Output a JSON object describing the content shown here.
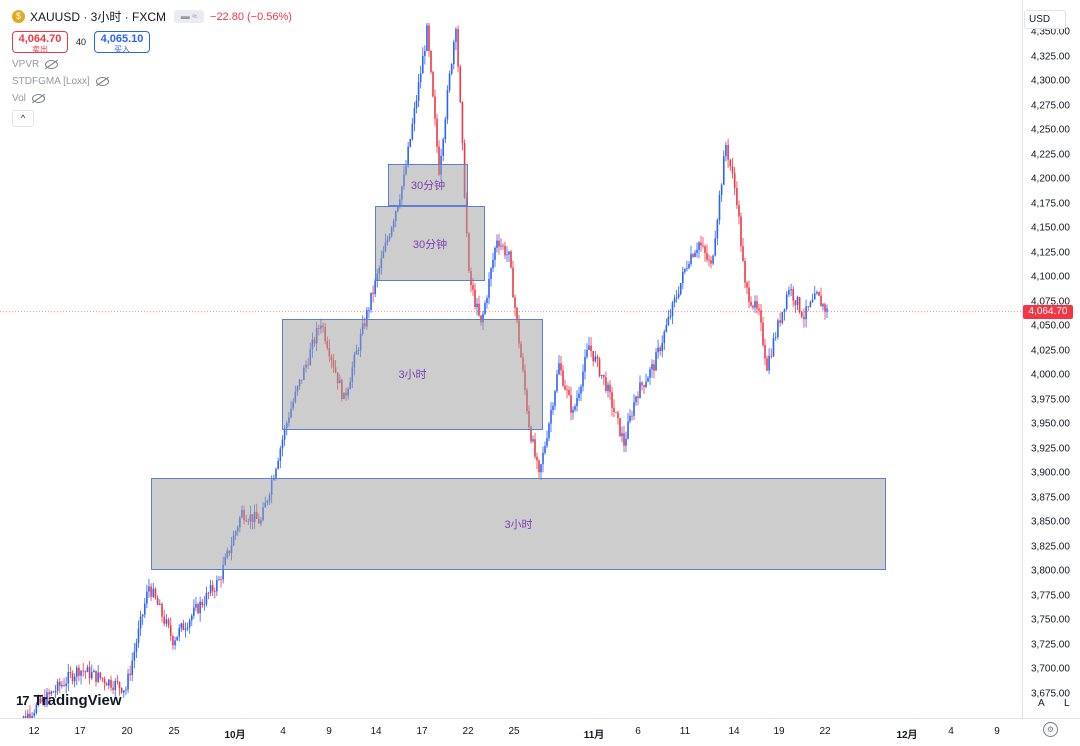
{
  "legend": {
    "symbol": "XAUUSD · 3小时 · FXCM",
    "coin_icon": "gold-coin-icon",
    "toggle_glyph": "≈",
    "change": "−22.80 (−0.56%)",
    "sell": {
      "price": "4,064.70",
      "label": "卖出"
    },
    "spread": "40",
    "buy": {
      "price": "4,065.10",
      "label": "买入"
    },
    "indicators": [
      "VPVR",
      "STDFGMA [Loxx]",
      "Vol"
    ],
    "collapse_glyph": "^"
  },
  "price_axis": {
    "currency": "USD",
    "last_price": "4,064.70",
    "ticks": [
      "4,350.00",
      "4,325.00",
      "4,300.00",
      "4,275.00",
      "4,250.00",
      "4,225.00",
      "4,200.00",
      "4,175.00",
      "4,150.00",
      "4,125.00",
      "4,100.00",
      "4,075.00",
      "4,050.00",
      "4,025.00",
      "4,000.00",
      "3,975.00",
      "3,950.00",
      "3,925.00",
      "3,900.00",
      "3,875.00",
      "3,850.00",
      "3,825.00",
      "3,800.00",
      "3,775.00",
      "3,750.00",
      "3,725.00",
      "3,700.00",
      "3,675.00"
    ],
    "auto_label": "A",
    "log_label": "L"
  },
  "time_axis": {
    "labels": [
      "12",
      "17",
      "20",
      "25",
      "10月",
      "4",
      "9",
      "14",
      "17",
      "22",
      "25",
      "11月",
      "6",
      "11",
      "14",
      "19",
      "22",
      "12月",
      "4",
      "9"
    ]
  },
  "zones": [
    {
      "label": "30分钟",
      "top": 4215,
      "bottom": 4172
    },
    {
      "label": "30分钟",
      "top": 4172,
      "bottom": 4096
    },
    {
      "label": "3小时",
      "top": 4057,
      "bottom": 3944
    },
    {
      "label": "3小时",
      "top": 3895,
      "bottom": 3801
    }
  ],
  "colors": {
    "up": "#2962ff",
    "down": "#f23645",
    "zone_border": "#5b7fd6",
    "last_price_line": "#f23645"
  },
  "chart_data": {
    "type": "candlestick",
    "symbol": "XAUUSD",
    "timeframe": "3小时",
    "last_price": 4064.7,
    "ylim": [
      3660,
      4360
    ],
    "path": [
      [
        "9/12",
        3640
      ],
      [
        "9/17",
        3700
      ],
      [
        "9/20",
        3680
      ],
      [
        "9/23",
        3785
      ],
      [
        "9/25",
        3730
      ],
      [
        "9/29",
        3790
      ],
      [
        "10/1",
        3860
      ],
      [
        "10/3",
        3850
      ],
      [
        "10/6",
        3960
      ],
      [
        "10/8",
        4055
      ],
      [
        "10/10",
        3975
      ],
      [
        "10/13",
        4070
      ],
      [
        "10/15",
        4200
      ],
      [
        "10/17",
        4350
      ],
      [
        "10/18",
        4210
      ],
      [
        "10/20",
        4360
      ],
      [
        "10/21",
        4100
      ],
      [
        "10/22",
        4050
      ],
      [
        "10/23",
        4140
      ],
      [
        "10/24",
        4120
      ],
      [
        "10/27",
        3950
      ],
      [
        "10/28",
        3895
      ],
      [
        "10/29",
        4010
      ],
      [
        "10/30",
        3960
      ],
      [
        "10/31",
        4030
      ],
      [
        "11/3",
        3990
      ],
      [
        "11/4",
        3930
      ],
      [
        "11/6",
        3980
      ],
      [
        "11/7",
        4010
      ],
      [
        "11/10",
        4120
      ],
      [
        "11/11",
        4135
      ],
      [
        "11/12",
        4110
      ],
      [
        "11/13",
        4235
      ],
      [
        "11/14",
        4180
      ],
      [
        "11/15",
        4090
      ],
      [
        "11/17",
        4060
      ],
      [
        "11/18",
        4010
      ],
      [
        "11/19",
        4090
      ],
      [
        "11/20",
        4060
      ],
      [
        "11/21",
        4080
      ],
      [
        "11/22",
        4065
      ]
    ]
  }
}
